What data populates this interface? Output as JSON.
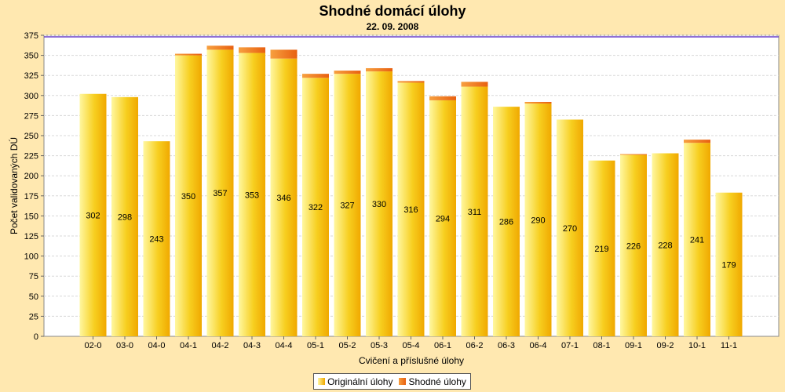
{
  "chart_data": {
    "type": "bar",
    "stacked": true,
    "title": "Shodné domácí úlohy",
    "subtitle": "22. 09. 2008",
    "xlabel": "Cvičení a příslušné úlohy",
    "ylabel": "Počet validovaných DÚ",
    "ylim": [
      0,
      375
    ],
    "yticks": [
      0,
      25,
      50,
      75,
      100,
      125,
      150,
      175,
      200,
      225,
      250,
      275,
      300,
      325,
      350,
      375
    ],
    "grid": true,
    "legend_position": "bottom-center",
    "categories": [
      "02-0",
      "03-0",
      "04-0",
      "04-1",
      "04-2",
      "04-3",
      "04-4",
      "05-1",
      "05-2",
      "05-3",
      "05-4",
      "06-1",
      "06-2",
      "06-3",
      "06-4",
      "07-1",
      "08-1",
      "09-1",
      "09-2",
      "10-1",
      "11-1"
    ],
    "series": [
      {
        "name": "Originální úlohy",
        "color": "#f5c400",
        "values": [
          302,
          298,
          243,
          350,
          357,
          353,
          346,
          322,
          327,
          330,
          316,
          294,
          311,
          286,
          290,
          270,
          219,
          226,
          228,
          241,
          179
        ]
      },
      {
        "name": "Shodné úlohy",
        "color": "#f07820",
        "values": [
          0,
          0,
          0,
          2,
          5,
          7,
          11,
          5,
          4,
          4,
          2,
          5,
          6,
          0,
          2,
          0,
          0,
          1,
          0,
          4,
          0
        ]
      }
    ]
  },
  "colors": {
    "background": "#ffe8b0",
    "plot_background": "#ffffff",
    "gridline": "#d8d8d8",
    "marker_line": "#6a40c8"
  }
}
